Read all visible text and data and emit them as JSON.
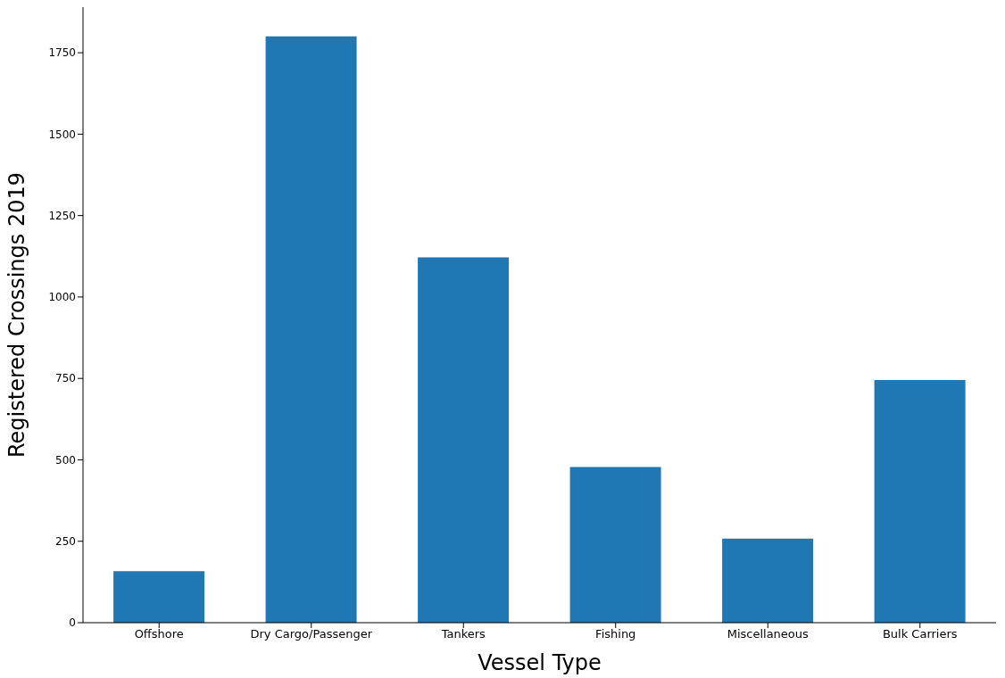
{
  "chart_data": {
    "type": "bar",
    "xlabel": "Vessel Type",
    "ylabel": "Registered Crossings 2019",
    "categories": [
      "Offshore",
      "Dry Cargo/Passenger",
      "Tankers",
      "Fishing",
      "Miscellaneous",
      "Bulk Carriers"
    ],
    "values": [
      158,
      1800,
      1122,
      478,
      258,
      745
    ],
    "color": "#1f77b4",
    "ylim": [
      0,
      1890
    ],
    "yticks": [
      0,
      250,
      500,
      750,
      1000,
      1250,
      1500,
      1750
    ],
    "grid": false
  }
}
